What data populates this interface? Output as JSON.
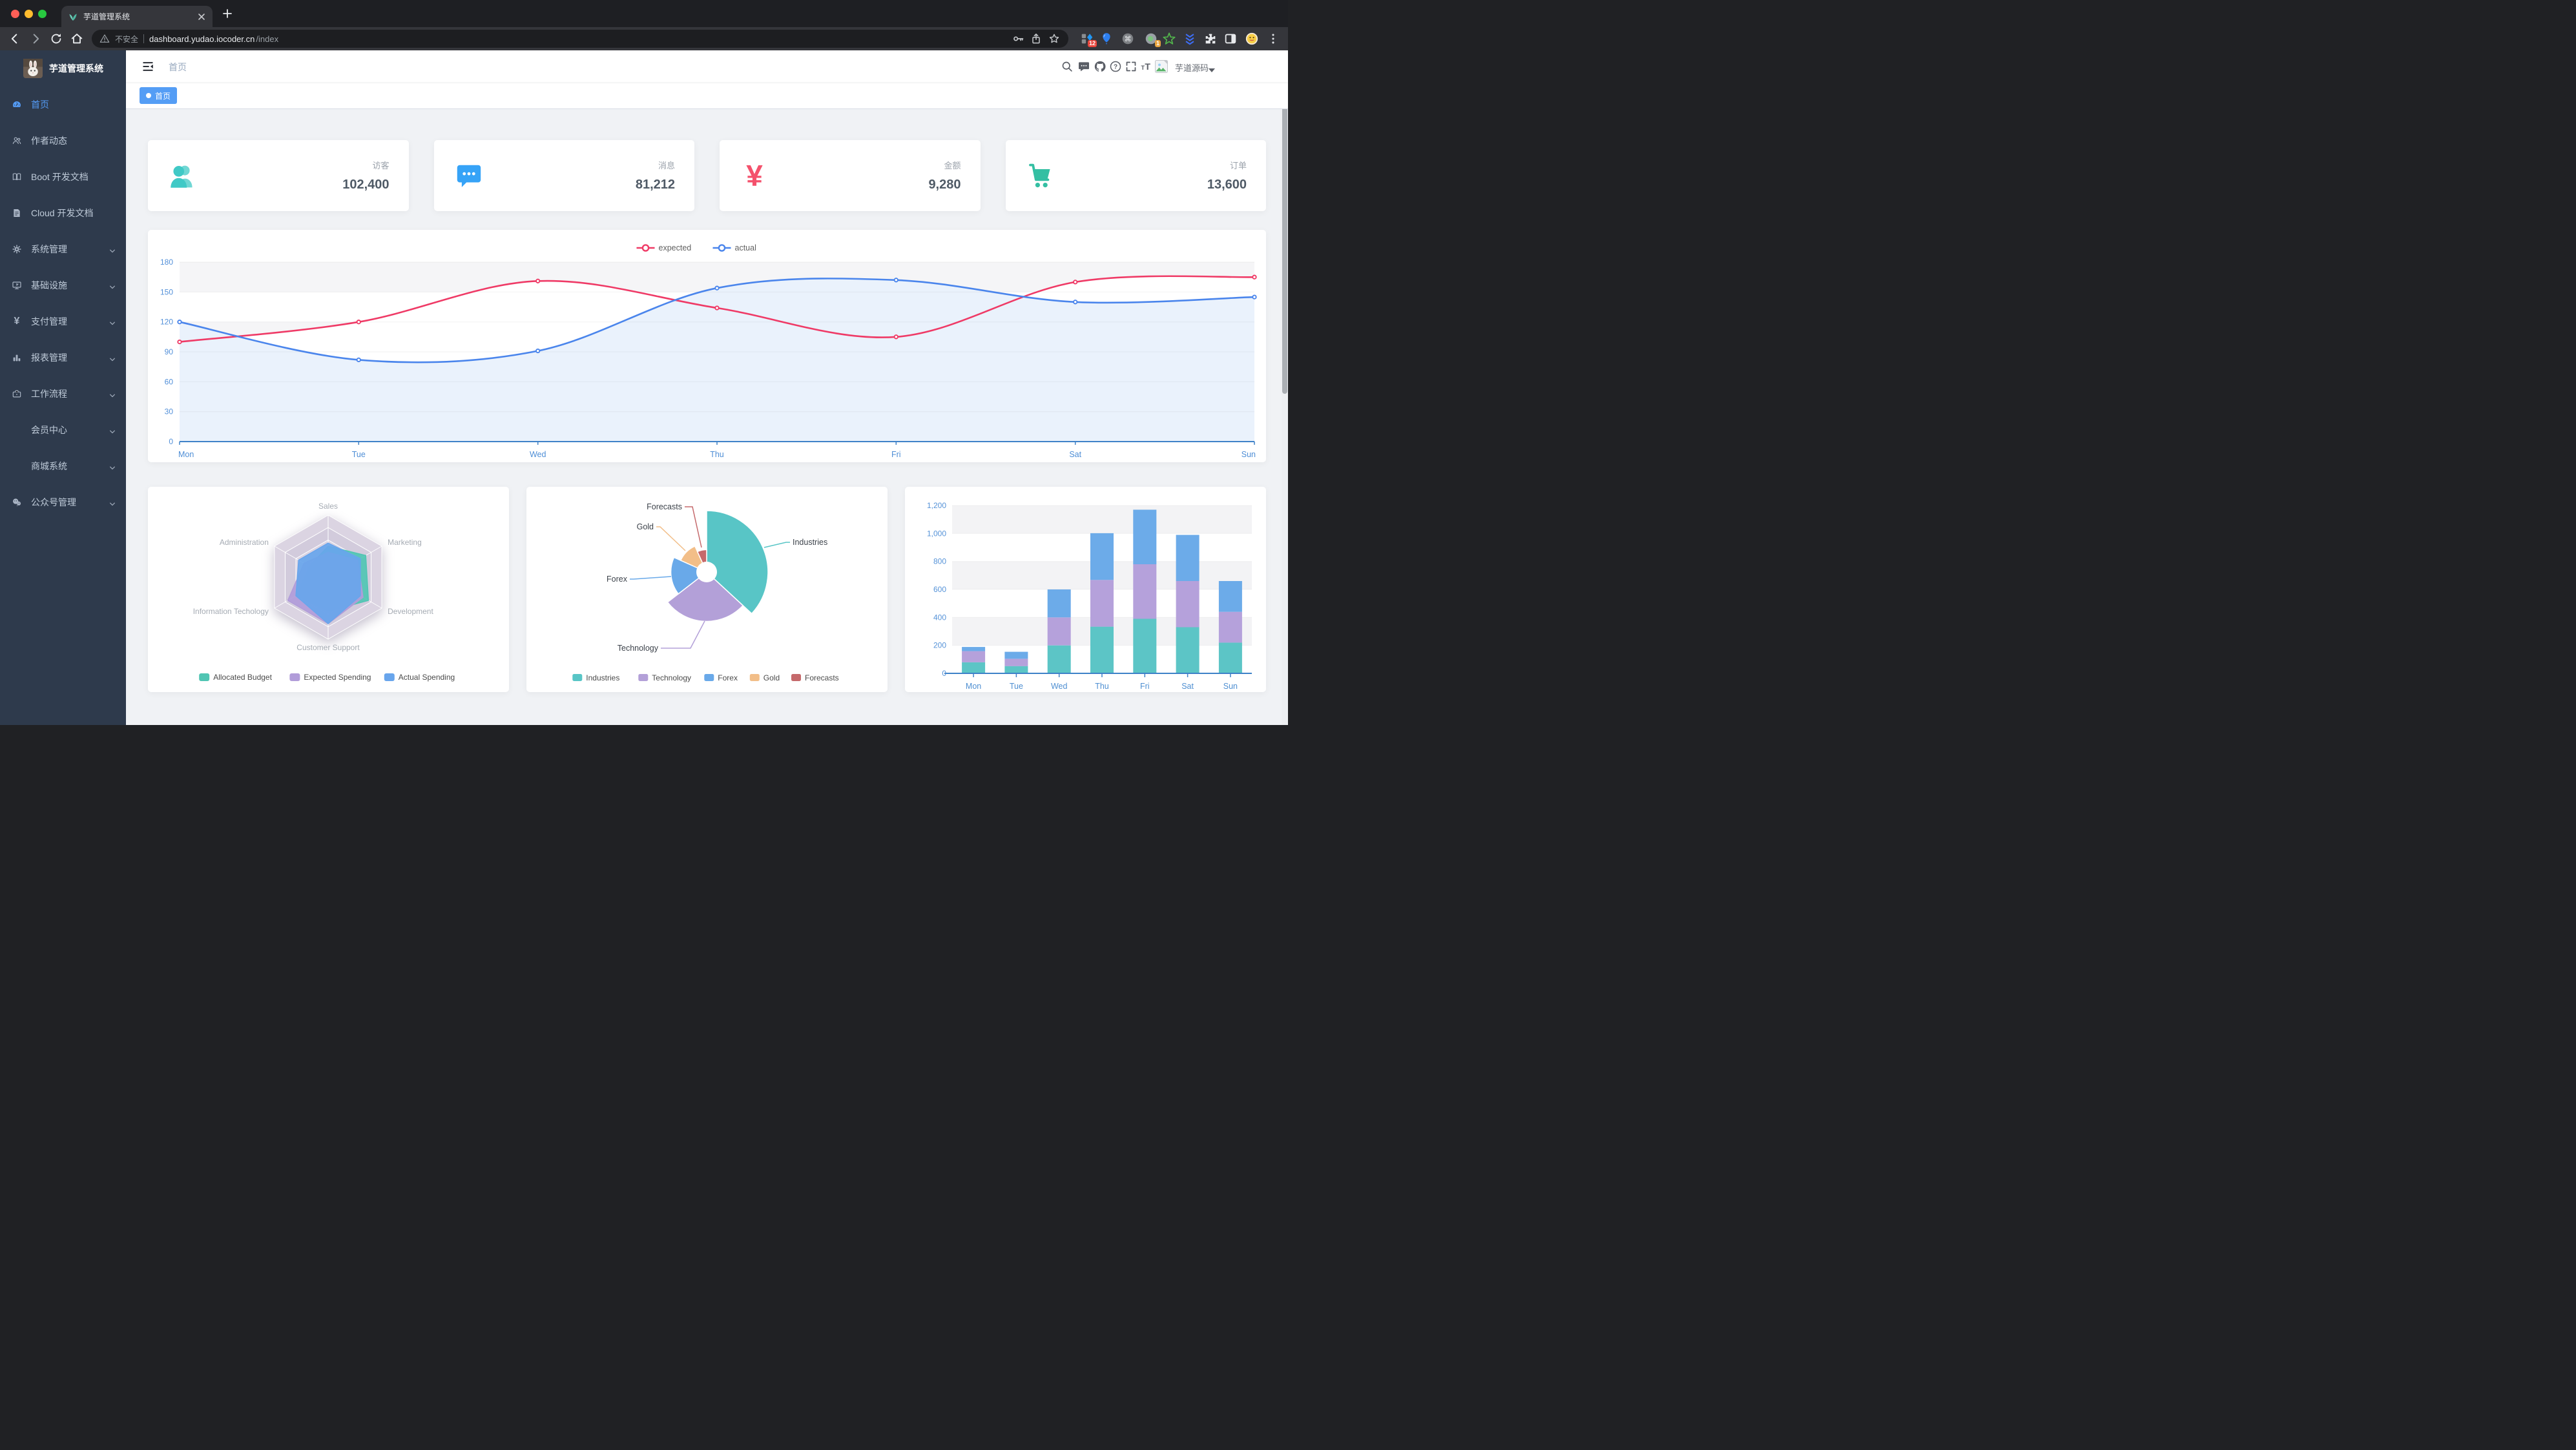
{
  "palette": {
    "accent_blue": "#549DF5",
    "sidebar_bg": "#2E3A4C",
    "page_bg": "#F0F2F5",
    "traffic_red": "#FF5F57",
    "traffic_yellow": "#FEBC2E",
    "traffic_green": "#28C840"
  },
  "browser": {
    "tab": {
      "title": "芋道管理系统"
    },
    "toolbar": {
      "security_label": "不安全",
      "url_host": "dashboard.yudao.iocoder.cn",
      "url_path": "/index"
    },
    "extensions": {
      "badge_a": "12",
      "badge_b": "1"
    }
  },
  "app": {
    "sidebar": {
      "title": "芋道管理系统",
      "items": [
        {
          "key": "home",
          "label": "首页",
          "icon": "dashboard",
          "active": true,
          "expandable": false,
          "child": false
        },
        {
          "key": "author",
          "label": "作者动态",
          "icon": "peoples",
          "active": false,
          "expandable": false,
          "child": false
        },
        {
          "key": "boot-docs",
          "label": "Boot 开发文档",
          "icon": "education",
          "active": false,
          "expandable": false,
          "child": false
        },
        {
          "key": "cloud-docs",
          "label": "Cloud 开发文档",
          "icon": "documentation",
          "active": false,
          "expandable": false,
          "child": false
        },
        {
          "key": "system",
          "label": "系统管理",
          "icon": "gear",
          "active": false,
          "expandable": true,
          "child": false
        },
        {
          "key": "infra",
          "label": "基础设施",
          "icon": "monitor",
          "active": false,
          "expandable": true,
          "child": false
        },
        {
          "key": "payment",
          "label": "支付管理",
          "icon": "money",
          "active": false,
          "expandable": true,
          "child": false
        },
        {
          "key": "report",
          "label": "报表管理",
          "icon": "chart",
          "active": false,
          "expandable": true,
          "child": false
        },
        {
          "key": "workflow",
          "label": "工作流程",
          "icon": "workflow",
          "active": false,
          "expandable": true,
          "child": false
        },
        {
          "key": "member",
          "label": "会员中心",
          "icon": null,
          "active": false,
          "expandable": true,
          "child": true
        },
        {
          "key": "mall",
          "label": "商城系统",
          "icon": null,
          "active": false,
          "expandable": true,
          "child": true
        },
        {
          "key": "mp",
          "label": "公众号管理",
          "icon": "wechat",
          "active": false,
          "expandable": true,
          "child": false
        }
      ]
    },
    "navbar": {
      "breadcrumb": "首页",
      "username": "芋道源码"
    },
    "tags": {
      "items": [
        {
          "label": "首页",
          "active": true
        }
      ]
    },
    "stats": [
      {
        "key": "visitors",
        "label": "访客",
        "value": "102,400",
        "icon": "peoples",
        "color": "#40C9C6"
      },
      {
        "key": "messages",
        "label": "消息",
        "value": "81,212",
        "icon": "message",
        "color": "#36A3F7"
      },
      {
        "key": "amount",
        "label": "金额",
        "value": "9,280",
        "icon": "money",
        "color": "#F4516C"
      },
      {
        "key": "orders",
        "label": "订单",
        "value": "13,600",
        "icon": "shopping-cart",
        "color": "#34BFA3"
      }
    ]
  },
  "icon_glyphs": {
    "yen": "¥",
    "question": "?",
    "command": "⌘",
    "font_big": "T",
    "font_small": "T"
  },
  "chart_data": [
    {
      "id": "weekly-line",
      "type": "line",
      "categories": [
        "Mon",
        "Tue",
        "Wed",
        "Thu",
        "Fri",
        "Sat",
        "Sun"
      ],
      "series": [
        {
          "name": "expected",
          "color": "#EF3A66",
          "area_color": "#FFFFFF",
          "values": [
            100,
            120,
            161,
            134,
            105,
            160,
            165
          ]
        },
        {
          "name": "actual",
          "color": "#4A85EC",
          "area_color": "#EAF2FC",
          "values": [
            120,
            82,
            91,
            154,
            162,
            140,
            145
          ]
        }
      ],
      "ylim": [
        0,
        180
      ],
      "ytick_values": [
        0,
        30,
        60,
        90,
        120,
        150,
        180
      ],
      "ytick_labels": [
        "0",
        "30",
        "60",
        "90",
        "120",
        "150",
        "180"
      ],
      "legend_position": "top",
      "grid": "striped-bands"
    },
    {
      "id": "budget-radar",
      "type": "radar",
      "indicators": [
        {
          "name": "Sales",
          "max": 10000
        },
        {
          "name": "Administration",
          "max": 20000
        },
        {
          "name": "Information Techology",
          "max": 20000
        },
        {
          "name": "Customer Support",
          "max": 20000
        },
        {
          "name": "Development",
          "max": 20000
        },
        {
          "name": "Marketing",
          "max": 20000
        }
      ],
      "series": [
        {
          "name": "Allocated Budget",
          "color": "#50C5B3",
          "values": [
            5000,
            7000,
            12000,
            11000,
            15000,
            14000
          ]
        },
        {
          "name": "Expected Spending",
          "color": "#B19CD9",
          "values": [
            4000,
            9000,
            15000,
            15000,
            13000,
            11000
          ]
        },
        {
          "name": "Actual Spending",
          "color": "#68A5EC",
          "values": [
            5500,
            11000,
            12000,
            15000,
            12000,
            12000
          ]
        }
      ],
      "legend_position": "bottom"
    },
    {
      "id": "weekly-rose-pie",
      "type": "pie",
      "rose": true,
      "items": [
        {
          "name": "Industries",
          "value": 320,
          "color": "#58C5C6"
        },
        {
          "name": "Technology",
          "value": 240,
          "color": "#B3A0D8"
        },
        {
          "name": "Forex",
          "value": 149,
          "color": "#69A9E9"
        },
        {
          "name": "Gold",
          "value": 100,
          "color": "#F2BE88"
        },
        {
          "name": "Forecasts",
          "value": 59,
          "color": "#C5696B"
        }
      ],
      "legend_position": "bottom"
    },
    {
      "id": "weekly-stacked-bar",
      "type": "bar",
      "stacked": true,
      "categories": [
        "Mon",
        "Tue",
        "Wed",
        "Thu",
        "Fri",
        "Sat",
        "Sun"
      ],
      "series": [
        {
          "color": "#5CC5C6",
          "values": [
            79,
            52,
            200,
            334,
            390,
            330,
            220
          ]
        },
        {
          "color": "#B5A1DB",
          "values": [
            80,
            52,
            200,
            334,
            390,
            330,
            220
          ]
        },
        {
          "color": "#6CABE9",
          "values": [
            30,
            50,
            200,
            334,
            390,
            330,
            220
          ]
        }
      ],
      "ylim": [
        0,
        1200
      ],
      "ytick_values": [
        0,
        200,
        400,
        600,
        800,
        1000,
        1200
      ],
      "ytick_labels": [
        "0",
        "200",
        "400",
        "600",
        "800",
        "1,000",
        "1,200"
      ]
    }
  ]
}
